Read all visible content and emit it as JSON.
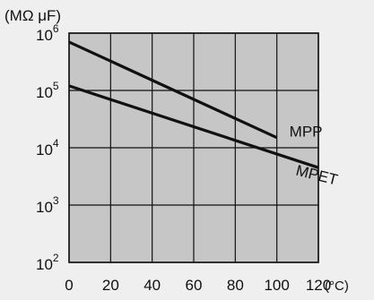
{
  "chart_data": {
    "type": "line",
    "y_scale": "log",
    "ylabel": "(MΩ μF)",
    "xunit": "(°C)",
    "xlim": [
      0,
      120
    ],
    "ylim": [
      100,
      1000000
    ],
    "grid": true,
    "x_ticks": [
      "0",
      "20",
      "40",
      "60",
      "80",
      "100",
      "120"
    ],
    "y_ticks": [
      {
        "base": "10",
        "exp": "6"
      },
      {
        "base": "10",
        "exp": "5"
      },
      {
        "base": "10",
        "exp": "4"
      },
      {
        "base": "10",
        "exp": "3"
      },
      {
        "base": "10",
        "exp": "2"
      }
    ],
    "series": [
      {
        "name": "MPP",
        "x": [
          0,
          100
        ],
        "y": [
          700000,
          15000
        ]
      },
      {
        "name": "MPET",
        "x": [
          0,
          120
        ],
        "y": [
          120000,
          4500
        ]
      }
    ],
    "colors": {
      "plot_bg": "#c6c6c6",
      "page_bg": "#efefef",
      "line": "#111111",
      "grid": "#111111"
    }
  }
}
